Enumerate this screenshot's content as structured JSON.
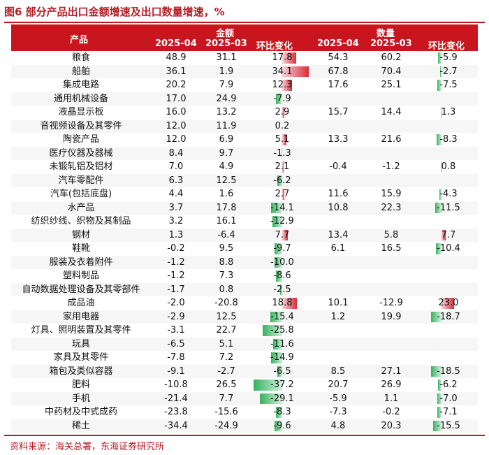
{
  "title": "图6  部分产品出口金额增速及出口数量增速，%",
  "header": {
    "product": "产品",
    "amount_group": "金额",
    "quantity_group": "数量",
    "col_2025_04": "2025-04",
    "col_2025_03": "2025-03",
    "col_change": "环比变化"
  },
  "colors": {
    "accent": "#c9161e",
    "positive_bar": "#d92d3a",
    "negative_bar": "#36b25e"
  },
  "rows": [
    {
      "name": "粮食",
      "a_apr": "48.9",
      "a_mar": "31.1",
      "a_chg": "17.8",
      "q_apr": "54.3",
      "q_mar": "60.2",
      "q_chg": "-5.9"
    },
    {
      "name": "船舶",
      "a_apr": "36.1",
      "a_mar": "1.9",
      "a_chg": "34.1",
      "q_apr": "67.8",
      "q_mar": "70.4",
      "q_chg": "-2.7"
    },
    {
      "name": "集成电路",
      "a_apr": "20.2",
      "a_mar": "7.9",
      "a_chg": "12.3",
      "q_apr": "17.6",
      "q_mar": "25.1",
      "q_chg": "-7.5"
    },
    {
      "name": "通用机械设备",
      "a_apr": "17.0",
      "a_mar": "24.9",
      "a_chg": "-7.9",
      "q_apr": "",
      "q_mar": "",
      "q_chg": ""
    },
    {
      "name": "液晶显示板",
      "a_apr": "16.0",
      "a_mar": "13.2",
      "a_chg": "2.9",
      "q_apr": "15.7",
      "q_mar": "14.4",
      "q_chg": "1.3"
    },
    {
      "name": "音视频设备及其零件",
      "a_apr": "12.0",
      "a_mar": "11.9",
      "a_chg": "0.2",
      "q_apr": "",
      "q_mar": "",
      "q_chg": ""
    },
    {
      "name": "陶瓷产品",
      "a_apr": "12.0",
      "a_mar": "6.9",
      "a_chg": "5.1",
      "q_apr": "13.3",
      "q_mar": "21.6",
      "q_chg": "-8.3"
    },
    {
      "name": "医疗仪器及器械",
      "a_apr": "8.4",
      "a_mar": "9.7",
      "a_chg": "-1.3",
      "q_apr": "",
      "q_mar": "",
      "q_chg": ""
    },
    {
      "name": "未锻轧铝及铝材",
      "a_apr": "7.0",
      "a_mar": "4.9",
      "a_chg": "2.1",
      "q_apr": "-0.4",
      "q_mar": "-1.2",
      "q_chg": "0.8"
    },
    {
      "name": "汽车零配件",
      "a_apr": "6.3",
      "a_mar": "12.5",
      "a_chg": "-6.2",
      "q_apr": "",
      "q_mar": "",
      "q_chg": ""
    },
    {
      "name": "汽车(包括底盘)",
      "a_apr": "4.4",
      "a_mar": "1.6",
      "a_chg": "2.7",
      "q_apr": "11.6",
      "q_mar": "15.9",
      "q_chg": "-4.3"
    },
    {
      "name": "水产品",
      "a_apr": "3.7",
      "a_mar": "17.8",
      "a_chg": "-14.1",
      "q_apr": "10.8",
      "q_mar": "22.3",
      "q_chg": "-11.5"
    },
    {
      "name": "纺织纱线、织物及其制品",
      "a_apr": "3.2",
      "a_mar": "16.1",
      "a_chg": "-12.9",
      "q_apr": "",
      "q_mar": "",
      "q_chg": ""
    },
    {
      "name": "钢材",
      "a_apr": "1.3",
      "a_mar": "-6.4",
      "a_chg": "7.7",
      "q_apr": "13.4",
      "q_mar": "5.8",
      "q_chg": "7.7"
    },
    {
      "name": "鞋靴",
      "a_apr": "-0.2",
      "a_mar": "9.5",
      "a_chg": "-9.7",
      "q_apr": "6.1",
      "q_mar": "16.5",
      "q_chg": "-10.4"
    },
    {
      "name": "服装及衣着附件",
      "a_apr": "-1.2",
      "a_mar": "8.8",
      "a_chg": "-10.0",
      "q_apr": "",
      "q_mar": "",
      "q_chg": ""
    },
    {
      "name": "塑料制品",
      "a_apr": "-1.2",
      "a_mar": "7.3",
      "a_chg": "-8.6",
      "q_apr": "",
      "q_mar": "",
      "q_chg": ""
    },
    {
      "name": "自动数据处理设备及其零部件",
      "a_apr": "-1.7",
      "a_mar": "0.8",
      "a_chg": "-2.5",
      "q_apr": "",
      "q_mar": "",
      "q_chg": ""
    },
    {
      "name": "成品油",
      "a_apr": "-2.0",
      "a_mar": "-20.8",
      "a_chg": "18.8",
      "q_apr": "10.1",
      "q_mar": "-12.9",
      "q_chg": "23.0"
    },
    {
      "name": "家用电器",
      "a_apr": "-2.9",
      "a_mar": "12.5",
      "a_chg": "-15.4",
      "q_apr": "1.2",
      "q_mar": "19.9",
      "q_chg": "-18.7"
    },
    {
      "name": "灯具、照明装置及其零件",
      "a_apr": "-3.1",
      "a_mar": "22.7",
      "a_chg": "-25.8",
      "q_apr": "",
      "q_mar": "",
      "q_chg": ""
    },
    {
      "name": "玩具",
      "a_apr": "-6.5",
      "a_mar": "5.1",
      "a_chg": "-11.6",
      "q_apr": "",
      "q_mar": "",
      "q_chg": ""
    },
    {
      "name": "家具及其零件",
      "a_apr": "-7.8",
      "a_mar": "7.2",
      "a_chg": "-14.9",
      "q_apr": "",
      "q_mar": "",
      "q_chg": ""
    },
    {
      "name": "箱包及类似容器",
      "a_apr": "-9.1",
      "a_mar": "-2.7",
      "a_chg": "-6.5",
      "q_apr": "8.5",
      "q_mar": "27.1",
      "q_chg": "-18.5"
    },
    {
      "name": "肥料",
      "a_apr": "-10.8",
      "a_mar": "26.5",
      "a_chg": "-37.2",
      "q_apr": "20.7",
      "q_mar": "26.9",
      "q_chg": "-6.2"
    },
    {
      "name": "手机",
      "a_apr": "-21.4",
      "a_mar": "7.7",
      "a_chg": "-29.1",
      "q_apr": "-5.9",
      "q_mar": "1.1",
      "q_chg": "-7.0"
    },
    {
      "name": "中药材及中式成药",
      "a_apr": "-23.8",
      "a_mar": "-15.6",
      "a_chg": "-8.3",
      "q_apr": "-7.3",
      "q_mar": "-0.2",
      "q_chg": "-7.1"
    },
    {
      "name": "稀土",
      "a_apr": "-34.4",
      "a_mar": "-24.9",
      "a_chg": "-9.6",
      "q_apr": "4.8",
      "q_mar": "20.3",
      "q_chg": "-15.5"
    }
  ],
  "source": "资料来源：海关总署，东海证券研究所"
}
